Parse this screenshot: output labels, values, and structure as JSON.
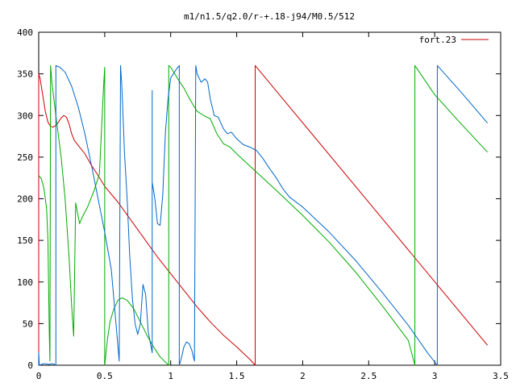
{
  "chart_data": {
    "type": "line",
    "title": "m1/n1.5/q2.0/r-+.18-j94/M0.5/512",
    "xlabel": "",
    "ylabel": "",
    "xlim": [
      0,
      3.5
    ],
    "ylim": [
      0,
      400
    ],
    "x_ticks": [
      0,
      0.5,
      1,
      1.5,
      2,
      2.5,
      3,
      3.5
    ],
    "x_tick_labels": [
      "0",
      "0.5",
      "1",
      "1.5",
      "2",
      "2.5",
      "3",
      "3.5"
    ],
    "y_ticks": [
      0,
      50,
      100,
      150,
      200,
      250,
      300,
      350,
      400
    ],
    "y_tick_labels": [
      "0",
      "50",
      "100",
      "150",
      "200",
      "250",
      "300",
      "350",
      "400"
    ],
    "grid": false,
    "legend": {
      "position": "top-right",
      "entries": [
        "fort.23"
      ]
    },
    "series": [
      {
        "name": "fort.23",
        "color": "#cc0000",
        "points": [
          [
            0,
            0
          ],
          [
            0,
            350
          ],
          [
            0.01,
            345
          ],
          [
            0.03,
            325
          ],
          [
            0.05,
            305
          ],
          [
            0.07,
            292
          ],
          [
            0.09,
            287
          ],
          [
            0.11,
            286
          ],
          [
            0.13,
            288
          ],
          [
            0.15,
            292
          ],
          [
            0.17,
            297
          ],
          [
            0.19,
            300
          ],
          [
            0.21,
            298
          ],
          [
            0.23,
            290
          ],
          [
            0.25,
            278
          ],
          [
            0.27,
            270
          ],
          [
            0.3,
            264
          ],
          [
            0.35,
            254
          ],
          [
            0.4,
            240
          ],
          [
            0.45,
            228
          ],
          [
            0.5,
            215
          ],
          [
            0.6,
            196
          ],
          [
            0.7,
            174
          ],
          [
            0.8,
            152
          ],
          [
            0.9,
            130
          ],
          [
            1.0,
            110
          ],
          [
            1.1,
            90
          ],
          [
            1.2,
            70
          ],
          [
            1.3,
            52
          ],
          [
            1.4,
            36
          ],
          [
            1.5,
            22
          ],
          [
            1.6,
            7
          ],
          [
            1.64,
            0
          ],
          [
            1.64,
            360
          ],
          [
            3.4,
            24
          ]
        ]
      },
      {
        "name": "",
        "color": "#00aa00",
        "points": [
          [
            0.0,
            228
          ],
          [
            0.02,
            224
          ],
          [
            0.04,
            212
          ],
          [
            0.06,
            188
          ],
          [
            0.07,
            150
          ],
          [
            0.08,
            40
          ],
          [
            0.085,
            5
          ],
          [
            0.09,
            360
          ],
          [
            0.1,
            340
          ],
          [
            0.13,
            300
          ],
          [
            0.17,
            250
          ],
          [
            0.2,
            200
          ],
          [
            0.23,
            130
          ],
          [
            0.25,
            70
          ],
          [
            0.265,
            35
          ],
          [
            0.28,
            195
          ],
          [
            0.3,
            178
          ],
          [
            0.31,
            170
          ],
          [
            0.33,
            178
          ],
          [
            0.37,
            190
          ],
          [
            0.42,
            210
          ],
          [
            0.46,
            230
          ],
          [
            0.49,
            330
          ],
          [
            0.5,
            358
          ],
          [
            0.5,
            0
          ],
          [
            0.52,
            30
          ],
          [
            0.54,
            52
          ],
          [
            0.57,
            68
          ],
          [
            0.6,
            78
          ],
          [
            0.63,
            81
          ],
          [
            0.67,
            78
          ],
          [
            0.72,
            68
          ],
          [
            0.77,
            52
          ],
          [
            0.82,
            36
          ],
          [
            0.87,
            22
          ],
          [
            0.92,
            10
          ],
          [
            0.985,
            0
          ],
          [
            0.985,
            360
          ],
          [
            1.0,
            358
          ],
          [
            1.05,
            345
          ],
          [
            1.1,
            333
          ],
          [
            1.15,
            318
          ],
          [
            1.2,
            305
          ],
          [
            1.25,
            300
          ],
          [
            1.3,
            296
          ],
          [
            1.35,
            278
          ],
          [
            1.4,
            266
          ],
          [
            1.45,
            262
          ],
          [
            1.5,
            254
          ],
          [
            1.65,
            232
          ],
          [
            1.8,
            210
          ],
          [
            2.0,
            180
          ],
          [
            2.2,
            148
          ],
          [
            2.4,
            112
          ],
          [
            2.6,
            72
          ],
          [
            2.8,
            30
          ],
          [
            2.85,
            0
          ],
          [
            2.85,
            360
          ],
          [
            3.0,
            325
          ],
          [
            3.2,
            290
          ],
          [
            3.4,
            256
          ]
        ]
      },
      {
        "name": "",
        "color": "#0066cc",
        "points": [
          [
            0.0,
            0
          ],
          [
            0.0,
            15
          ],
          [
            0.005,
            0
          ],
          [
            0.04,
            2
          ],
          [
            0.08,
            1
          ],
          [
            0.1,
            2
          ],
          [
            0.12,
            1
          ],
          [
            0.13,
            0
          ],
          [
            0.13,
            360
          ],
          [
            0.16,
            358
          ],
          [
            0.2,
            352
          ],
          [
            0.25,
            335
          ],
          [
            0.3,
            310
          ],
          [
            0.35,
            278
          ],
          [
            0.4,
            240
          ],
          [
            0.45,
            200
          ],
          [
            0.5,
            160
          ],
          [
            0.55,
            115
          ],
          [
            0.58,
            60
          ],
          [
            0.61,
            5
          ],
          [
            0.62,
            360
          ],
          [
            0.63,
            335
          ],
          [
            0.65,
            255
          ],
          [
            0.67,
            200
          ],
          [
            0.69,
            130
          ],
          [
            0.71,
            80
          ],
          [
            0.73,
            50
          ],
          [
            0.75,
            37
          ],
          [
            0.77,
            50
          ],
          [
            0.79,
            97
          ],
          [
            0.81,
            85
          ],
          [
            0.83,
            40
          ],
          [
            0.86,
            15
          ],
          [
            0.86,
            330
          ],
          [
            0.86,
            220
          ],
          [
            0.88,
            200
          ],
          [
            0.9,
            170
          ],
          [
            0.92,
            168
          ],
          [
            0.94,
            205
          ],
          [
            0.96,
            280
          ],
          [
            0.98,
            320
          ],
          [
            1.0,
            345
          ],
          [
            1.04,
            355
          ],
          [
            1.065,
            360
          ],
          [
            1.065,
            0
          ],
          [
            1.08,
            8
          ],
          [
            1.1,
            22
          ],
          [
            1.12,
            28
          ],
          [
            1.14,
            26
          ],
          [
            1.16,
            18
          ],
          [
            1.18,
            5
          ],
          [
            1.19,
            360
          ],
          [
            1.2,
            350
          ],
          [
            1.23,
            340
          ],
          [
            1.26,
            344
          ],
          [
            1.28,
            340
          ],
          [
            1.3,
            320
          ],
          [
            1.33,
            300
          ],
          [
            1.36,
            298
          ],
          [
            1.4,
            284
          ],
          [
            1.43,
            278
          ],
          [
            1.46,
            280
          ],
          [
            1.5,
            272
          ],
          [
            1.55,
            265
          ],
          [
            1.6,
            262
          ],
          [
            1.65,
            258
          ],
          [
            1.7,
            248
          ],
          [
            1.75,
            236
          ],
          [
            1.8,
            225
          ],
          [
            1.85,
            212
          ],
          [
            1.9,
            202
          ],
          [
            2.0,
            190
          ],
          [
            2.2,
            160
          ],
          [
            2.4,
            126
          ],
          [
            2.6,
            88
          ],
          [
            2.8,
            48
          ],
          [
            2.95,
            14
          ],
          [
            3.02,
            0
          ],
          [
            3.02,
            360
          ],
          [
            3.2,
            328
          ],
          [
            3.4,
            291
          ]
        ]
      }
    ]
  }
}
